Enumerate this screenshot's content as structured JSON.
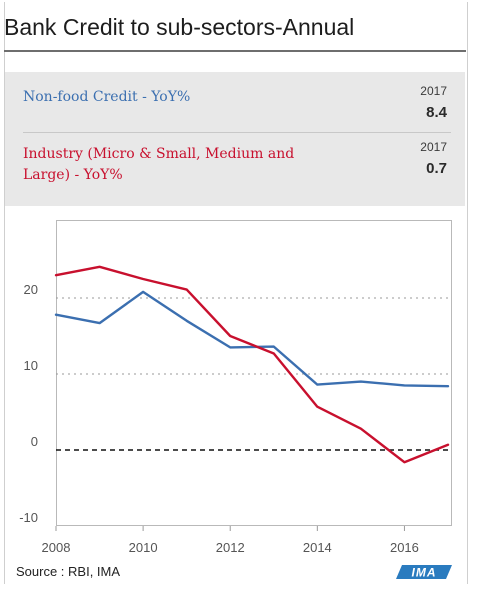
{
  "title": "Bank Credit to sub-sectors-Annual",
  "legend": [
    {
      "label": "Non-food Credit - YoY%",
      "year": "2017",
      "value": "8.4",
      "color": "#3b6fb0"
    },
    {
      "label_line1": "Industry (Micro & Small, Medium and",
      "label_line2": "Large) - YoY%",
      "year": "2017",
      "value": "0.7",
      "color": "#c8102e"
    }
  ],
  "source": "Source : RBI, IMA",
  "logo_text": "IMA",
  "chart_data": {
    "type": "line",
    "x": [
      2008,
      2009,
      2010,
      2011,
      2012,
      2013,
      2014,
      2015,
      2016,
      2017
    ],
    "series": [
      {
        "name": "Non-food Credit - YoY%",
        "color": "#3b6fb0",
        "values": [
          17.8,
          16.7,
          20.8,
          17.0,
          13.5,
          13.6,
          8.6,
          9.0,
          8.5,
          8.4
        ]
      },
      {
        "name": "Industry (Micro & Small, Medium and Large) - YoY%",
        "color": "#c8102e",
        "values": [
          23.0,
          24.1,
          22.5,
          21.1,
          15.0,
          12.7,
          5.7,
          2.8,
          -1.6,
          0.7
        ]
      }
    ],
    "xlim": [
      2008,
      2017
    ],
    "ylim": [
      -10,
      30
    ],
    "xticks": [
      2008,
      2010,
      2012,
      2014,
      2016
    ],
    "yticks": [
      20,
      10,
      0,
      -10
    ],
    "ytick_labels": [
      "20",
      "10",
      "0",
      "-10"
    ],
    "xlabel": "",
    "ylabel": "",
    "grid": "horizontal dotted",
    "zero_line": "dashed black",
    "legend_position": "top"
  }
}
